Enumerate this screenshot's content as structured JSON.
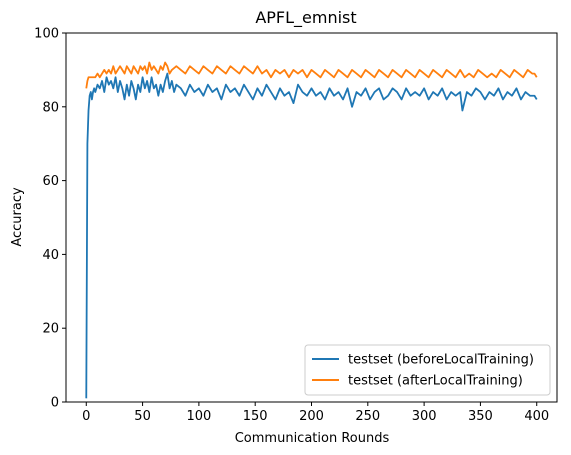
{
  "chart_data": {
    "type": "line",
    "title": "APFL_emnist",
    "xlabel": "Communication Rounds",
    "ylabel": "Accuracy",
    "xlim": [
      -18,
      418
    ],
    "ylim": [
      0,
      100
    ],
    "xticks": [
      0,
      50,
      100,
      150,
      200,
      250,
      300,
      350,
      400
    ],
    "yticks": [
      0,
      20,
      40,
      60,
      80,
      100
    ],
    "grid": false,
    "legend_position": "lower right",
    "series": [
      {
        "name": "testset (beforeLocalTraining)",
        "color": "#1f77b4",
        "points": [
          [
            0,
            1
          ],
          [
            1,
            70
          ],
          [
            2,
            79
          ],
          [
            3,
            83
          ],
          [
            4,
            84
          ],
          [
            5,
            82
          ],
          [
            6,
            84
          ],
          [
            7,
            85
          ],
          [
            8,
            84
          ],
          [
            9,
            85
          ],
          [
            10,
            86
          ],
          [
            12,
            85
          ],
          [
            14,
            87
          ],
          [
            16,
            84
          ],
          [
            18,
            88
          ],
          [
            20,
            86
          ],
          [
            22,
            87
          ],
          [
            24,
            85
          ],
          [
            26,
            88
          ],
          [
            28,
            84
          ],
          [
            30,
            87
          ],
          [
            32,
            85
          ],
          [
            34,
            82
          ],
          [
            36,
            86
          ],
          [
            38,
            83
          ],
          [
            40,
            87
          ],
          [
            42,
            85
          ],
          [
            44,
            82
          ],
          [
            46,
            86
          ],
          [
            48,
            84
          ],
          [
            50,
            88
          ],
          [
            52,
            85
          ],
          [
            54,
            87
          ],
          [
            56,
            84
          ],
          [
            58,
            88
          ],
          [
            60,
            85
          ],
          [
            62,
            86
          ],
          [
            64,
            83
          ],
          [
            66,
            86
          ],
          [
            68,
            84
          ],
          [
            70,
            87
          ],
          [
            72,
            89
          ],
          [
            74,
            85
          ],
          [
            76,
            87
          ],
          [
            78,
            84
          ],
          [
            80,
            86
          ],
          [
            84,
            85
          ],
          [
            88,
            83
          ],
          [
            92,
            86
          ],
          [
            96,
            84
          ],
          [
            100,
            85
          ],
          [
            104,
            83
          ],
          [
            108,
            86
          ],
          [
            112,
            84
          ],
          [
            116,
            85
          ],
          [
            120,
            82
          ],
          [
            124,
            86
          ],
          [
            128,
            84
          ],
          [
            132,
            85
          ],
          [
            136,
            83
          ],
          [
            140,
            86
          ],
          [
            144,
            84
          ],
          [
            148,
            82
          ],
          [
            152,
            85
          ],
          [
            156,
            83
          ],
          [
            160,
            86
          ],
          [
            164,
            84
          ],
          [
            168,
            82
          ],
          [
            172,
            85
          ],
          [
            176,
            83
          ],
          [
            180,
            84
          ],
          [
            184,
            81
          ],
          [
            188,
            86
          ],
          [
            192,
            84
          ],
          [
            196,
            83
          ],
          [
            200,
            85
          ],
          [
            204,
            83
          ],
          [
            208,
            84
          ],
          [
            212,
            82
          ],
          [
            216,
            85
          ],
          [
            220,
            83
          ],
          [
            224,
            84
          ],
          [
            228,
            82
          ],
          [
            232,
            85
          ],
          [
            236,
            80
          ],
          [
            240,
            84
          ],
          [
            244,
            83
          ],
          [
            248,
            85
          ],
          [
            252,
            82
          ],
          [
            256,
            84
          ],
          [
            260,
            85
          ],
          [
            264,
            82
          ],
          [
            268,
            83
          ],
          [
            272,
            85
          ],
          [
            276,
            84
          ],
          [
            280,
            82
          ],
          [
            284,
            85
          ],
          [
            288,
            83
          ],
          [
            292,
            84
          ],
          [
            296,
            83
          ],
          [
            300,
            85
          ],
          [
            304,
            82
          ],
          [
            308,
            84
          ],
          [
            312,
            83
          ],
          [
            316,
            85
          ],
          [
            320,
            82
          ],
          [
            324,
            84
          ],
          [
            328,
            83
          ],
          [
            332,
            84
          ],
          [
            334,
            79
          ],
          [
            338,
            84
          ],
          [
            342,
            83
          ],
          [
            346,
            85
          ],
          [
            350,
            84
          ],
          [
            354,
            82
          ],
          [
            358,
            84
          ],
          [
            362,
            83
          ],
          [
            366,
            85
          ],
          [
            370,
            82
          ],
          [
            374,
            84
          ],
          [
            378,
            83
          ],
          [
            382,
            85
          ],
          [
            386,
            82
          ],
          [
            390,
            84
          ],
          [
            394,
            83
          ],
          [
            398,
            83
          ],
          [
            400,
            82
          ]
        ]
      },
      {
        "name": "testset (afterLocalTraining)",
        "color": "#ff7f0e",
        "points": [
          [
            0,
            85
          ],
          [
            1,
            87
          ],
          [
            2,
            88
          ],
          [
            4,
            88
          ],
          [
            6,
            88
          ],
          [
            8,
            88
          ],
          [
            10,
            89
          ],
          [
            12,
            88
          ],
          [
            14,
            89
          ],
          [
            16,
            90
          ],
          [
            18,
            89
          ],
          [
            20,
            90
          ],
          [
            22,
            89
          ],
          [
            24,
            91
          ],
          [
            26,
            89
          ],
          [
            28,
            90
          ],
          [
            30,
            91
          ],
          [
            32,
            90
          ],
          [
            34,
            89
          ],
          [
            36,
            91
          ],
          [
            38,
            90
          ],
          [
            40,
            89
          ],
          [
            42,
            91
          ],
          [
            44,
            90
          ],
          [
            46,
            89
          ],
          [
            48,
            91
          ],
          [
            50,
            90
          ],
          [
            52,
            91
          ],
          [
            54,
            89
          ],
          [
            56,
            92
          ],
          [
            58,
            90
          ],
          [
            60,
            91
          ],
          [
            62,
            90
          ],
          [
            64,
            89
          ],
          [
            66,
            91
          ],
          [
            68,
            90
          ],
          [
            70,
            92
          ],
          [
            72,
            91
          ],
          [
            74,
            89
          ],
          [
            76,
            90
          ],
          [
            80,
            91
          ],
          [
            84,
            90
          ],
          [
            88,
            89
          ],
          [
            92,
            91
          ],
          [
            96,
            90
          ],
          [
            100,
            89
          ],
          [
            104,
            91
          ],
          [
            108,
            90
          ],
          [
            112,
            89
          ],
          [
            116,
            91
          ],
          [
            120,
            90
          ],
          [
            124,
            89
          ],
          [
            128,
            91
          ],
          [
            132,
            90
          ],
          [
            136,
            89
          ],
          [
            140,
            91
          ],
          [
            144,
            90
          ],
          [
            148,
            89
          ],
          [
            152,
            91
          ],
          [
            156,
            89
          ],
          [
            160,
            90
          ],
          [
            164,
            88
          ],
          [
            168,
            90
          ],
          [
            172,
            89
          ],
          [
            176,
            90
          ],
          [
            180,
            88
          ],
          [
            184,
            90
          ],
          [
            188,
            89
          ],
          [
            192,
            90
          ],
          [
            196,
            88
          ],
          [
            200,
            90
          ],
          [
            204,
            89
          ],
          [
            208,
            88
          ],
          [
            212,
            90
          ],
          [
            216,
            89
          ],
          [
            220,
            88
          ],
          [
            224,
            90
          ],
          [
            228,
            89
          ],
          [
            232,
            88
          ],
          [
            236,
            90
          ],
          [
            240,
            89
          ],
          [
            244,
            88
          ],
          [
            248,
            90
          ],
          [
            252,
            89
          ],
          [
            256,
            88
          ],
          [
            260,
            90
          ],
          [
            264,
            89
          ],
          [
            268,
            88
          ],
          [
            272,
            90
          ],
          [
            276,
            89
          ],
          [
            280,
            88
          ],
          [
            284,
            90
          ],
          [
            288,
            89
          ],
          [
            292,
            88
          ],
          [
            296,
            90
          ],
          [
            300,
            89
          ],
          [
            304,
            88
          ],
          [
            308,
            90
          ],
          [
            312,
            89
          ],
          [
            316,
            88
          ],
          [
            320,
            90
          ],
          [
            324,
            89
          ],
          [
            328,
            88
          ],
          [
            332,
            90
          ],
          [
            336,
            88
          ],
          [
            340,
            89
          ],
          [
            344,
            88
          ],
          [
            348,
            90
          ],
          [
            352,
            89
          ],
          [
            356,
            88
          ],
          [
            360,
            89
          ],
          [
            364,
            88
          ],
          [
            368,
            90
          ],
          [
            372,
            89
          ],
          [
            376,
            88
          ],
          [
            380,
            90
          ],
          [
            384,
            89
          ],
          [
            388,
            88
          ],
          [
            392,
            90
          ],
          [
            396,
            89
          ],
          [
            398,
            89
          ],
          [
            400,
            88
          ]
        ]
      }
    ]
  }
}
